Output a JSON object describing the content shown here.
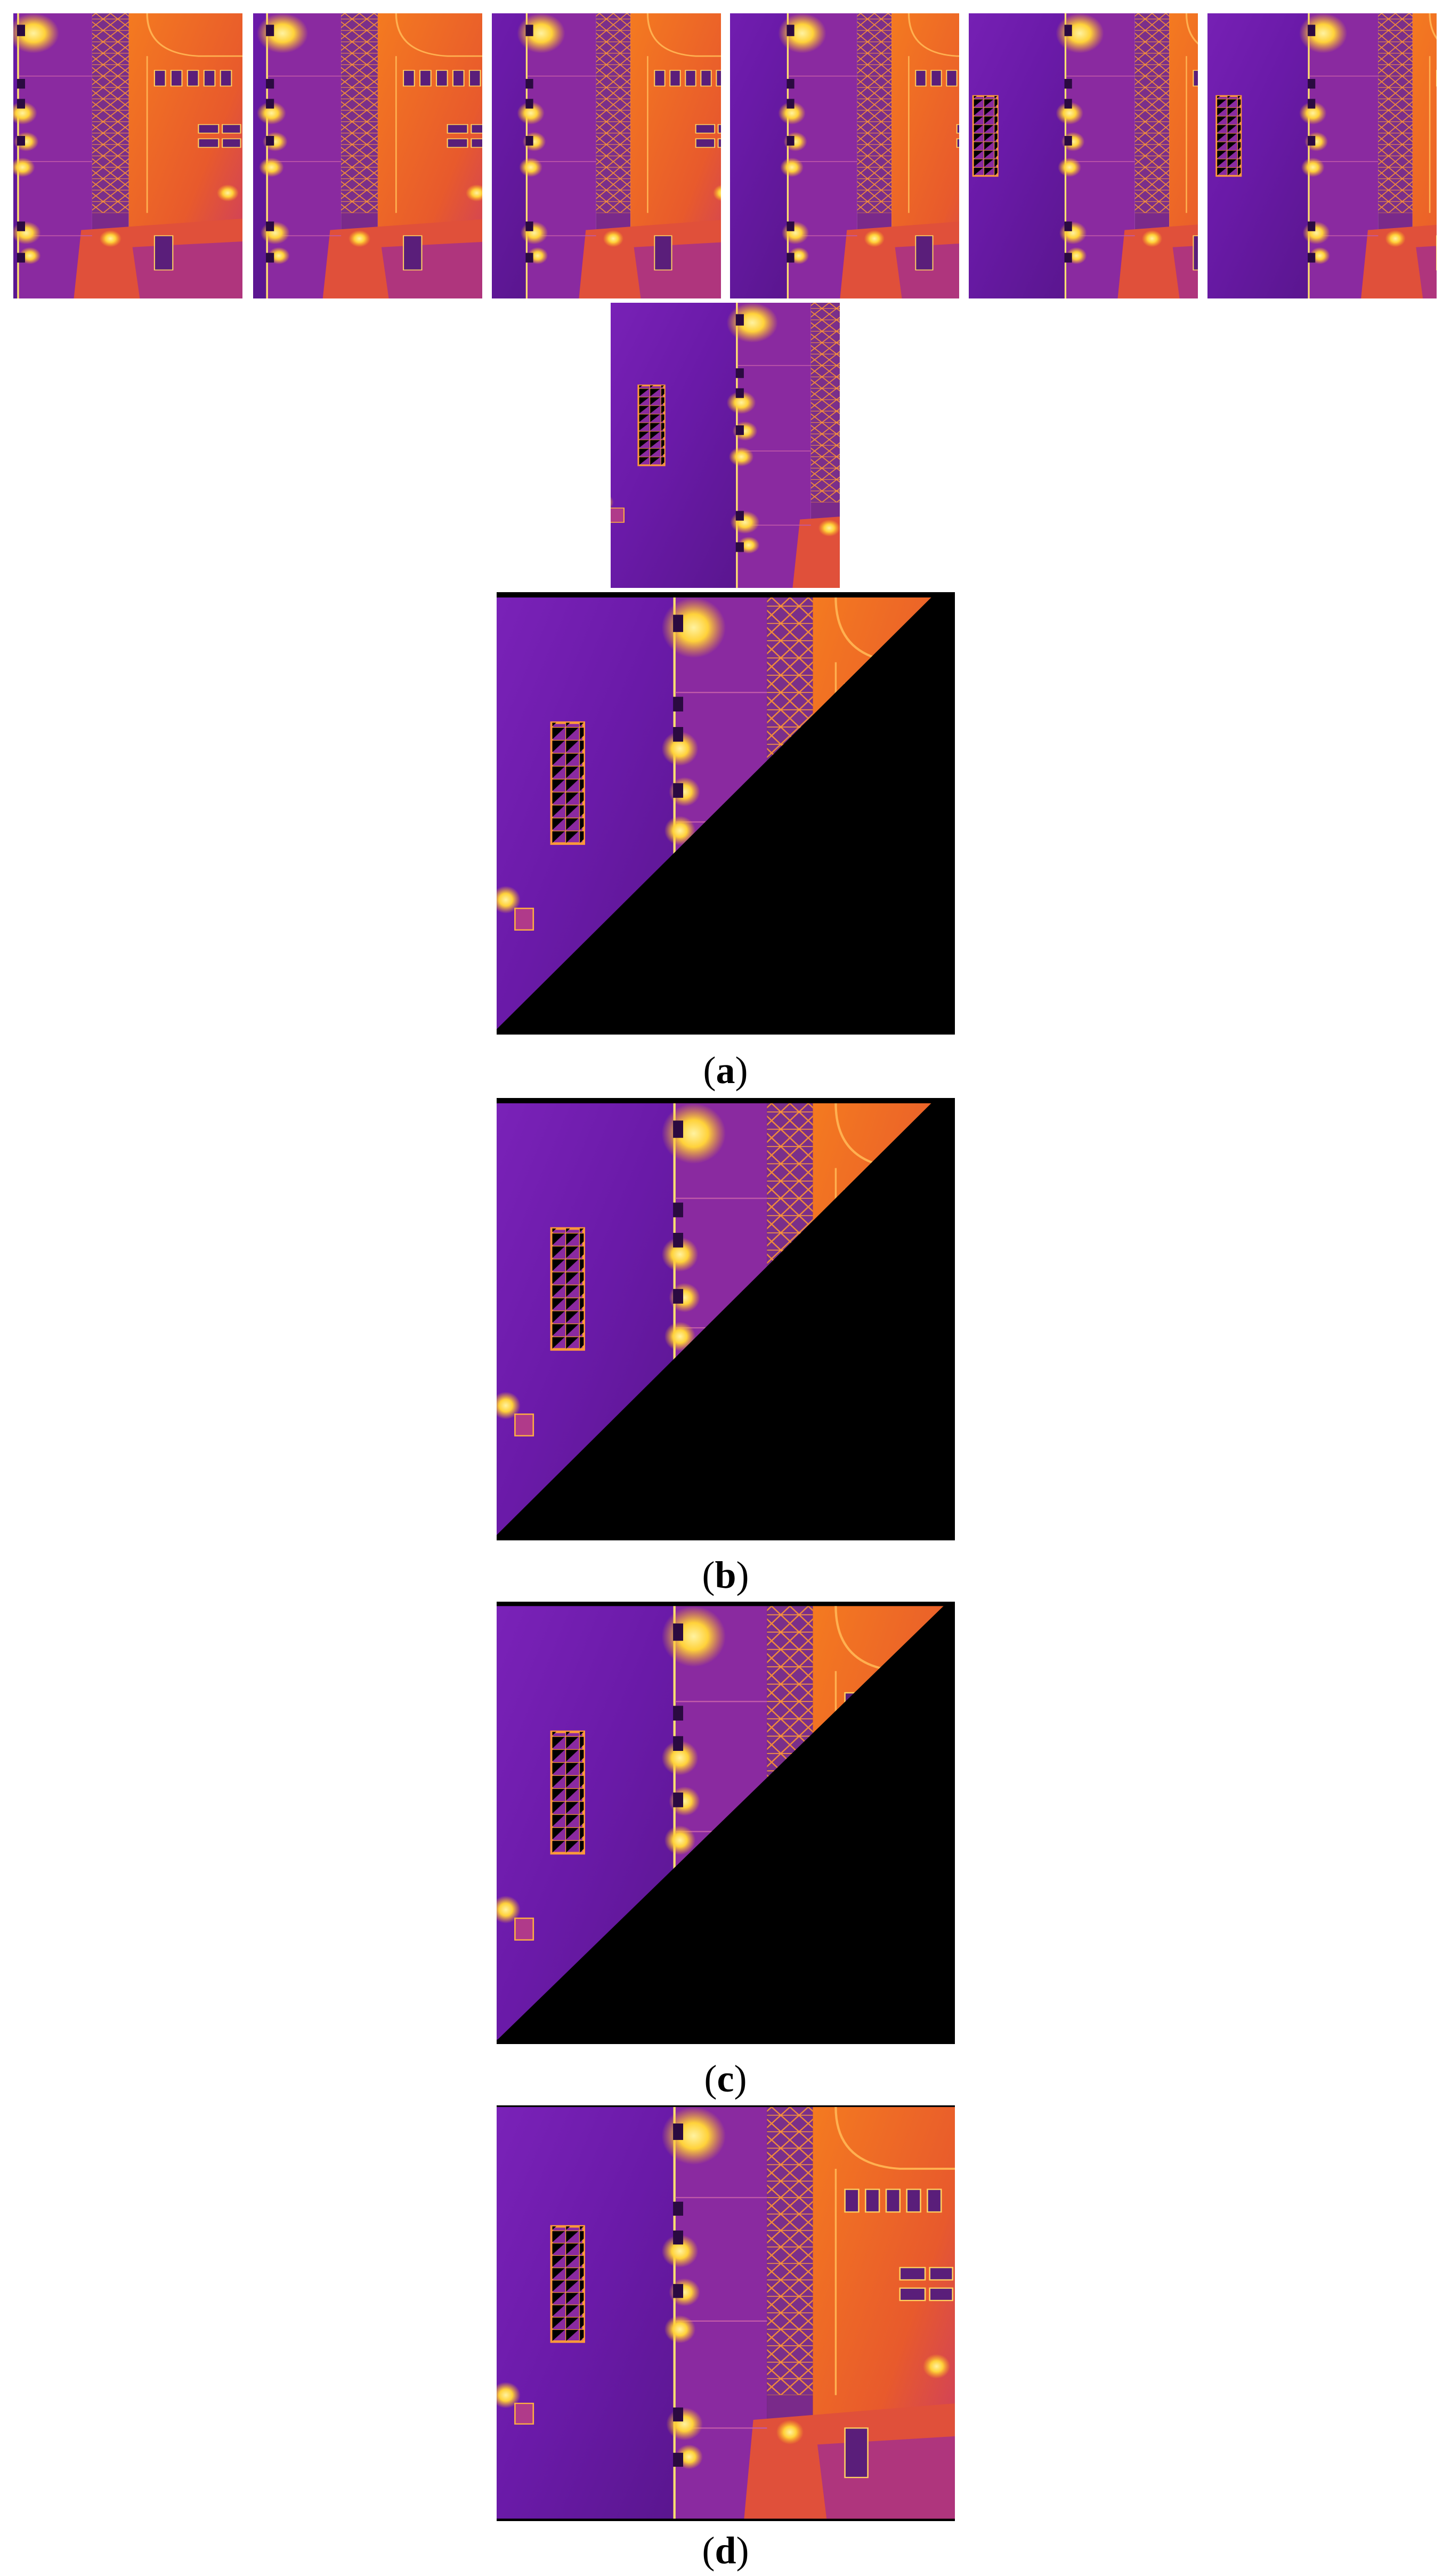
{
  "figure": {
    "top_row_count": 6,
    "panels": [
      {
        "id": "a",
        "caption_open": "(",
        "caption_letter": "a",
        "caption_close": ")"
      },
      {
        "id": "b",
        "caption_open": "(",
        "caption_letter": "b",
        "caption_close": ")"
      },
      {
        "id": "c",
        "caption_open": "(",
        "caption_letter": "c",
        "caption_close": ")"
      },
      {
        "id": "d",
        "caption_open": "(",
        "caption_letter": "d",
        "caption_close": ")"
      }
    ]
  },
  "colors": {
    "background": "#ffffff",
    "thermal_cold": "#6a1aa8",
    "thermal_mid": "#c2307a",
    "thermal_warm": "#f06a1a",
    "thermal_hot": "#ffd94a",
    "border_black": "#000000"
  }
}
